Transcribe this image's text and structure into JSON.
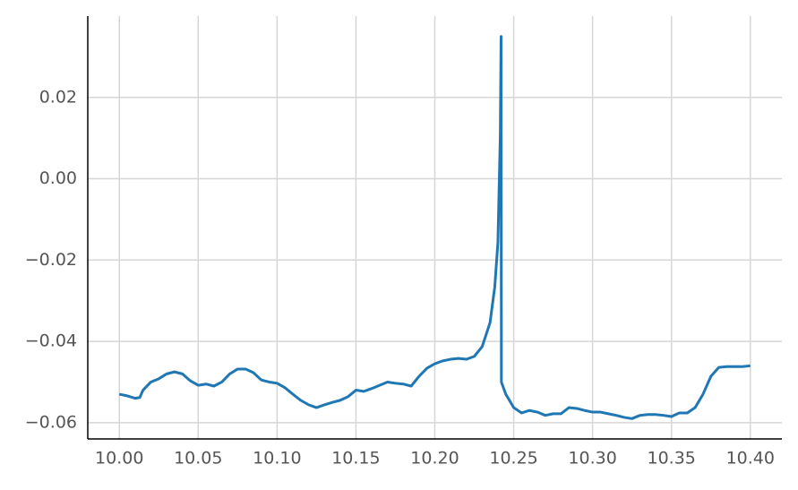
{
  "chart_data": {
    "type": "line",
    "x": [
      10.0,
      10.005,
      10.01,
      10.013,
      10.015,
      10.02,
      10.025,
      10.03,
      10.035,
      10.04,
      10.045,
      10.05,
      10.055,
      10.06,
      10.065,
      10.07,
      10.075,
      10.08,
      10.085,
      10.09,
      10.095,
      10.1,
      10.105,
      10.11,
      10.115,
      10.12,
      10.125,
      10.13,
      10.135,
      10.14,
      10.145,
      10.15,
      10.155,
      10.16,
      10.165,
      10.17,
      10.175,
      10.18,
      10.185,
      10.19,
      10.195,
      10.2,
      10.205,
      10.21,
      10.215,
      10.22,
      10.225,
      10.23,
      10.235,
      10.238,
      10.24,
      10.2415,
      10.242,
      10.2422,
      10.245,
      10.25,
      10.255,
      10.26,
      10.265,
      10.27,
      10.275,
      10.28,
      10.285,
      10.29,
      10.295,
      10.3,
      10.305,
      10.31,
      10.315,
      10.32,
      10.325,
      10.33,
      10.335,
      10.34,
      10.345,
      10.35,
      10.355,
      10.36,
      10.365,
      10.37,
      10.375,
      10.38,
      10.385,
      10.39,
      10.395,
      10.4
    ],
    "series": [
      {
        "color": "#1f77b4",
        "values": [
          -0.053,
          -0.0534,
          -0.054,
          -0.0538,
          -0.052,
          -0.05,
          -0.0492,
          -0.048,
          -0.0475,
          -0.048,
          -0.0497,
          -0.0508,
          -0.0505,
          -0.051,
          -0.05,
          -0.048,
          -0.0468,
          -0.0468,
          -0.0477,
          -0.0495,
          -0.05,
          -0.0503,
          -0.0514,
          -0.053,
          -0.0545,
          -0.0556,
          -0.0563,
          -0.0556,
          -0.055,
          -0.0545,
          -0.0536,
          -0.052,
          -0.0523,
          -0.0516,
          -0.0508,
          -0.05,
          -0.0503,
          -0.0505,
          -0.051,
          -0.0486,
          -0.0466,
          -0.0455,
          -0.0448,
          -0.0444,
          -0.0442,
          -0.0444,
          -0.0437,
          -0.0413,
          -0.0354,
          -0.0266,
          -0.0156,
          0.0108,
          0.035,
          -0.05,
          -0.053,
          -0.0563,
          -0.0576,
          -0.057,
          -0.0574,
          -0.0582,
          -0.0578,
          -0.0578,
          -0.0563,
          -0.0565,
          -0.057,
          -0.0574,
          -0.0574,
          -0.0578,
          -0.0582,
          -0.0587,
          -0.059,
          -0.0582,
          -0.058,
          -0.058,
          -0.0582,
          -0.0585,
          -0.0576,
          -0.0576,
          -0.0563,
          -0.053,
          -0.0486,
          -0.0464,
          -0.0462,
          -0.0462,
          -0.0462,
          -0.046
        ]
      }
    ],
    "xlim": [
      9.98,
      10.42
    ],
    "ylim": [
      -0.064,
      0.04
    ],
    "xticks": [
      {
        "value": 10.0,
        "label": "10.00"
      },
      10.05,
      {
        "value": 10.1,
        "label": "10.10"
      },
      10.15,
      {
        "value": 10.2,
        "label": "10.20"
      },
      10.25,
      {
        "value": 10.3,
        "label": "10.30"
      },
      10.35,
      {
        "value": 10.4,
        "label": "10.40"
      }
    ],
    "yticks": [
      {
        "value": -0.06,
        "label": "−0.06"
      },
      {
        "value": -0.04,
        "label": "−0.04"
      },
      {
        "value": -0.02,
        "label": "−0.02"
      },
      {
        "value": 0,
        "label": "0.00"
      },
      0.02
    ],
    "grid": true
  }
}
